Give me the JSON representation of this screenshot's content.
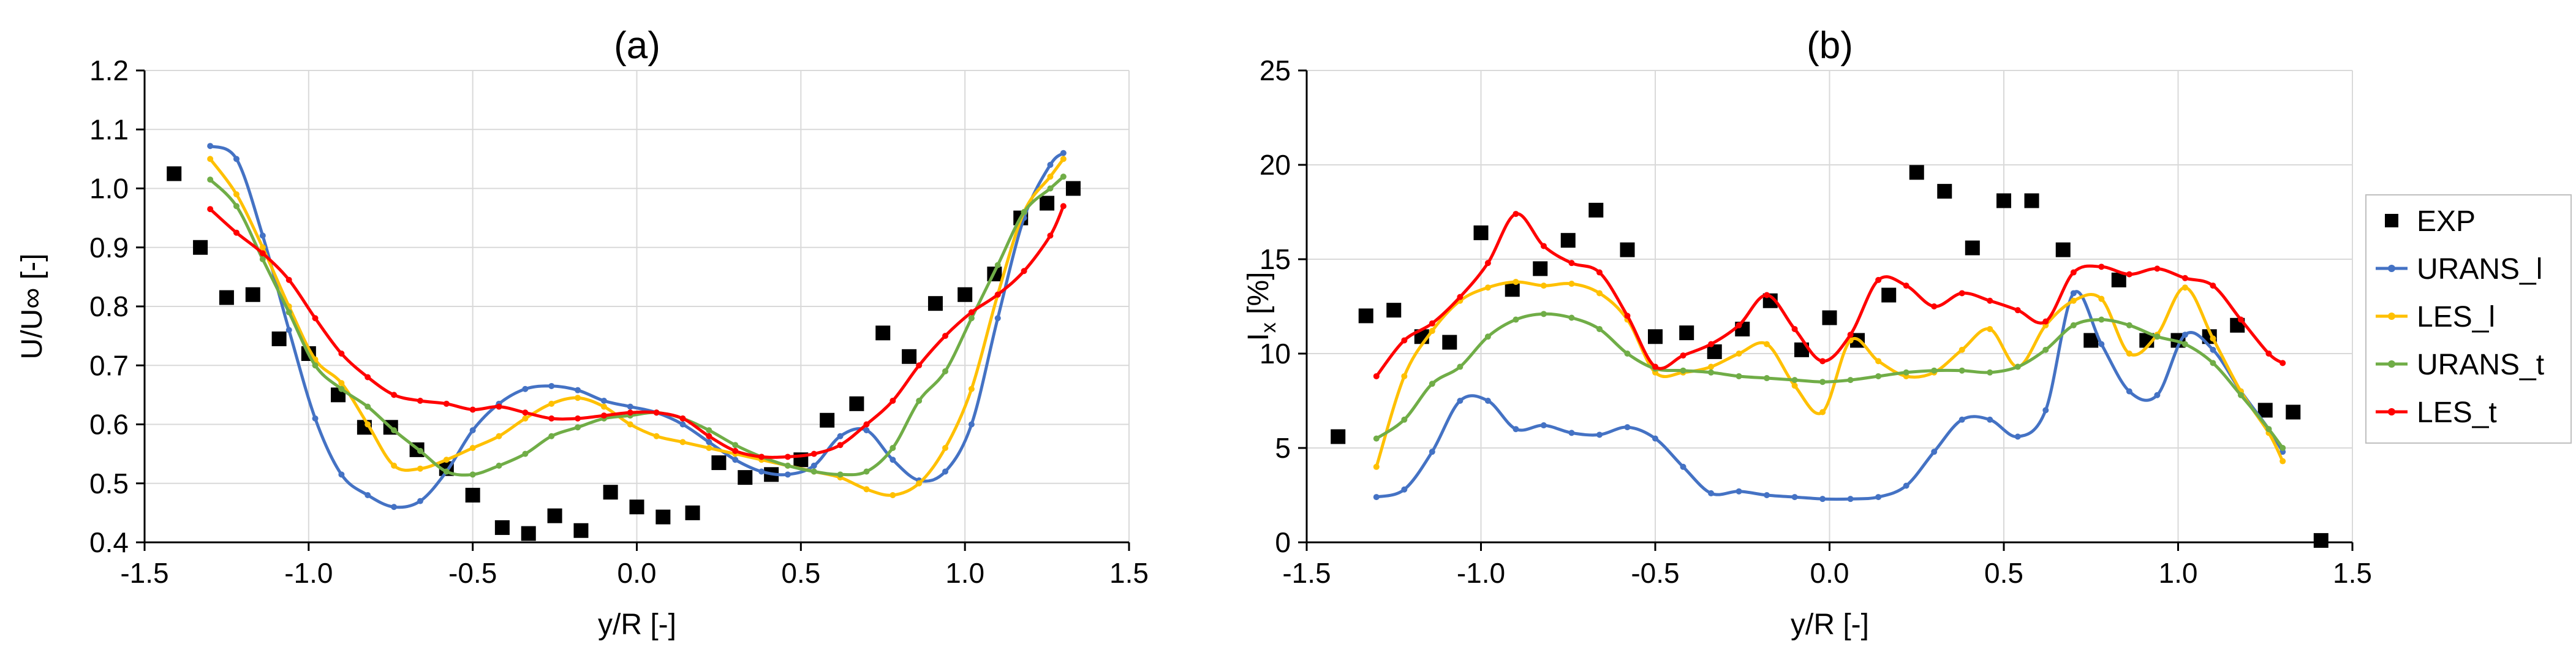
{
  "chart_data": [
    {
      "type": "line",
      "title": "(a)",
      "xlabel": "y/R [-]",
      "ylabel": "U/U∞ [-]",
      "xlim": [
        -1.5,
        1.5
      ],
      "ylim": [
        0.4,
        1.2
      ],
      "xticks": [
        -1.5,
        -1.0,
        -0.5,
        0.0,
        0.5,
        1.0,
        1.5
      ],
      "yticks": [
        0.4,
        0.5,
        0.6,
        0.7,
        0.8,
        0.9,
        1.0,
        1.1,
        1.2
      ],
      "xtick_labels": [
        "-1.5",
        "-1.0",
        "-0.5",
        "0.0",
        "0.5",
        "1.0",
        "1.5"
      ],
      "ytick_labels": [
        "0.4",
        "0.5",
        "0.6",
        "0.7",
        "0.8",
        "0.9",
        "1.0",
        "1.1",
        "1.2"
      ],
      "grid": true,
      "series": [
        {
          "name": "EXP",
          "marker": "square",
          "color": "#000000",
          "x": [
            -1.41,
            -1.33,
            -1.25,
            -1.17,
            -1.09,
            -1.0,
            -0.91,
            -0.83,
            -0.75,
            -0.67,
            -0.58,
            -0.5,
            -0.41,
            -0.33,
            -0.25,
            -0.17,
            -0.08,
            0.0,
            0.08,
            0.17,
            0.25,
            0.33,
            0.41,
            0.5,
            0.58,
            0.67,
            0.75,
            0.83,
            0.91,
            1.0,
            1.09,
            1.17,
            1.25,
            1.33
          ],
          "y": [
            1.025,
            0.9,
            0.815,
            0.82,
            0.745,
            0.72,
            0.65,
            0.595,
            0.595,
            0.557,
            0.525,
            0.48,
            0.425,
            0.415,
            0.445,
            0.42,
            0.485,
            0.46,
            0.443,
            0.45,
            0.535,
            0.51,
            0.515,
            0.54,
            0.607,
            0.635,
            0.755,
            0.715,
            0.805,
            0.82,
            0.855,
            0.95,
            0.975,
            1.0
          ]
        },
        {
          "name": "URANS_l",
          "color": "#4472C4",
          "x": [
            -1.3,
            -1.22,
            -1.14,
            -1.06,
            -0.98,
            -0.9,
            -0.82,
            -0.74,
            -0.66,
            -0.58,
            -0.5,
            -0.42,
            -0.34,
            -0.26,
            -0.18,
            -0.1,
            -0.02,
            0.06,
            0.14,
            0.22,
            0.3,
            0.38,
            0.46,
            0.54,
            0.62,
            0.7,
            0.78,
            0.86,
            0.94,
            1.02,
            1.1,
            1.18,
            1.26,
            1.3
          ],
          "y": [
            1.072,
            1.05,
            0.92,
            0.76,
            0.61,
            0.515,
            0.48,
            0.46,
            0.47,
            0.52,
            0.59,
            0.635,
            0.66,
            0.665,
            0.658,
            0.64,
            0.63,
            0.62,
            0.6,
            0.57,
            0.54,
            0.52,
            0.515,
            0.53,
            0.58,
            0.59,
            0.54,
            0.505,
            0.52,
            0.6,
            0.78,
            0.95,
            1.04,
            1.06
          ]
        },
        {
          "name": "LES_l",
          "color": "#FFC000",
          "x": [
            -1.3,
            -1.22,
            -1.14,
            -1.06,
            -0.98,
            -0.9,
            -0.82,
            -0.74,
            -0.66,
            -0.58,
            -0.5,
            -0.42,
            -0.34,
            -0.26,
            -0.18,
            -0.1,
            -0.02,
            0.06,
            0.14,
            0.22,
            0.3,
            0.38,
            0.46,
            0.54,
            0.62,
            0.7,
            0.78,
            0.86,
            0.94,
            1.02,
            1.1,
            1.18,
            1.26,
            1.3
          ],
          "y": [
            1.05,
            0.99,
            0.9,
            0.8,
            0.71,
            0.67,
            0.6,
            0.53,
            0.525,
            0.54,
            0.56,
            0.58,
            0.61,
            0.635,
            0.645,
            0.63,
            0.6,
            0.58,
            0.57,
            0.56,
            0.55,
            0.54,
            0.53,
            0.52,
            0.51,
            0.49,
            0.48,
            0.5,
            0.56,
            0.66,
            0.82,
            0.96,
            1.02,
            1.05
          ]
        },
        {
          "name": "URANS_t",
          "color": "#70AD47",
          "x": [
            -1.3,
            -1.22,
            -1.14,
            -1.06,
            -0.98,
            -0.9,
            -0.82,
            -0.74,
            -0.66,
            -0.58,
            -0.5,
            -0.42,
            -0.34,
            -0.26,
            -0.18,
            -0.1,
            -0.02,
            0.06,
            0.14,
            0.22,
            0.3,
            0.38,
            0.46,
            0.54,
            0.62,
            0.7,
            0.78,
            0.86,
            0.94,
            1.02,
            1.1,
            1.18,
            1.26,
            1.3
          ],
          "y": [
            1.015,
            0.97,
            0.88,
            0.79,
            0.7,
            0.66,
            0.63,
            0.59,
            0.555,
            0.52,
            0.515,
            0.53,
            0.55,
            0.58,
            0.595,
            0.61,
            0.615,
            0.62,
            0.61,
            0.59,
            0.565,
            0.545,
            0.53,
            0.52,
            0.515,
            0.52,
            0.56,
            0.64,
            0.69,
            0.78,
            0.87,
            0.96,
            1.0,
            1.02
          ]
        },
        {
          "name": "LES_t",
          "color": "#FF0000",
          "x": [
            -1.3,
            -1.22,
            -1.14,
            -1.06,
            -0.98,
            -0.9,
            -0.82,
            -0.74,
            -0.66,
            -0.58,
            -0.5,
            -0.42,
            -0.34,
            -0.26,
            -0.18,
            -0.1,
            -0.02,
            0.06,
            0.14,
            0.22,
            0.3,
            0.38,
            0.46,
            0.54,
            0.62,
            0.7,
            0.78,
            0.86,
            0.94,
            1.02,
            1.1,
            1.18,
            1.26,
            1.3
          ],
          "y": [
            0.965,
            0.925,
            0.89,
            0.845,
            0.78,
            0.72,
            0.68,
            0.65,
            0.64,
            0.635,
            0.625,
            0.63,
            0.62,
            0.61,
            0.61,
            0.615,
            0.62,
            0.62,
            0.61,
            0.58,
            0.555,
            0.545,
            0.545,
            0.55,
            0.565,
            0.6,
            0.64,
            0.7,
            0.75,
            0.79,
            0.82,
            0.86,
            0.92,
            0.97
          ]
        }
      ]
    },
    {
      "type": "line",
      "title": "(b)",
      "xlabel": "y/R [-]",
      "ylabel": "I",
      "ylabel_sub": "x",
      "ylabel_unit": " [%]",
      "xlim": [
        -1.5,
        1.5
      ],
      "ylim": [
        0,
        25
      ],
      "xticks": [
        -1.5,
        -1.0,
        -0.5,
        0.0,
        0.5,
        1.0,
        1.5
      ],
      "yticks": [
        0,
        5,
        10,
        15,
        20,
        25
      ],
      "xtick_labels": [
        "-1.5",
        "-1.0",
        "-0.5",
        "0.0",
        "0.5",
        "1.0",
        "1.5"
      ],
      "ytick_labels": [
        "0",
        "5",
        "10",
        "15",
        "20",
        "25"
      ],
      "grid": true,
      "legend": "right",
      "series": [
        {
          "name": "EXP",
          "marker": "square",
          "color": "#000000",
          "x": [
            -1.41,
            -1.33,
            -1.25,
            -1.17,
            -1.09,
            -1.0,
            -0.91,
            -0.83,
            -0.75,
            -0.67,
            -0.58,
            -0.5,
            -0.41,
            -0.33,
            -0.25,
            -0.17,
            -0.08,
            0.0,
            0.08,
            0.17,
            0.25,
            0.33,
            0.41,
            0.5,
            0.58,
            0.67,
            0.75,
            0.83,
            0.91,
            1.0,
            1.09,
            1.17,
            1.25,
            1.33,
            1.41
          ],
          "y": [
            5.6,
            12.0,
            12.3,
            10.9,
            10.6,
            16.4,
            13.4,
            14.5,
            16.0,
            17.6,
            15.5,
            10.9,
            11.1,
            10.1,
            11.3,
            12.8,
            10.2,
            11.9,
            10.7,
            13.1,
            19.6,
            18.6,
            15.6,
            18.1,
            18.1,
            15.5,
            10.7,
            13.9,
            10.7,
            10.7,
            10.9,
            11.5,
            7.0,
            6.9,
            0.1
          ]
        },
        {
          "name": "URANS_l",
          "color": "#4472C4",
          "x": [
            -1.3,
            -1.22,
            -1.14,
            -1.06,
            -0.98,
            -0.9,
            -0.82,
            -0.74,
            -0.66,
            -0.58,
            -0.5,
            -0.42,
            -0.34,
            -0.26,
            -0.18,
            -0.1,
            -0.02,
            0.06,
            0.14,
            0.22,
            0.3,
            0.38,
            0.46,
            0.54,
            0.62,
            0.7,
            0.78,
            0.86,
            0.94,
            1.02,
            1.1,
            1.18,
            1.26,
            1.3
          ],
          "y": [
            2.4,
            2.8,
            4.8,
            7.5,
            7.5,
            6.0,
            6.2,
            5.8,
            5.7,
            6.1,
            5.5,
            4.0,
            2.6,
            2.7,
            2.5,
            2.4,
            2.3,
            2.3,
            2.4,
            3.0,
            4.8,
            6.5,
            6.5,
            5.6,
            7.0,
            13.2,
            10.5,
            8.0,
            7.8,
            11.0,
            10.2,
            8.0,
            6.0,
            4.8
          ]
        },
        {
          "name": "LES_l",
          "color": "#FFC000",
          "x": [
            -1.3,
            -1.22,
            -1.14,
            -1.06,
            -0.98,
            -0.9,
            -0.82,
            -0.74,
            -0.66,
            -0.58,
            -0.5,
            -0.42,
            -0.34,
            -0.26,
            -0.18,
            -0.1,
            -0.02,
            0.06,
            0.14,
            0.22,
            0.3,
            0.38,
            0.46,
            0.54,
            0.62,
            0.7,
            0.78,
            0.86,
            0.94,
            1.02,
            1.1,
            1.18,
            1.26,
            1.3
          ],
          "y": [
            4.0,
            8.8,
            11.2,
            12.8,
            13.5,
            13.8,
            13.6,
            13.7,
            13.2,
            11.8,
            9.0,
            9.0,
            9.3,
            10.0,
            10.5,
            8.3,
            6.9,
            10.7,
            9.6,
            8.8,
            9.0,
            10.2,
            11.3,
            9.3,
            11.5,
            12.8,
            12.9,
            10.0,
            11.0,
            13.5,
            10.8,
            8.0,
            5.8,
            4.3
          ]
        },
        {
          "name": "URANS_t",
          "color": "#70AD47",
          "x": [
            -1.3,
            -1.22,
            -1.14,
            -1.06,
            -0.98,
            -0.9,
            -0.82,
            -0.74,
            -0.66,
            -0.58,
            -0.5,
            -0.42,
            -0.34,
            -0.26,
            -0.18,
            -0.1,
            -0.02,
            0.06,
            0.14,
            0.22,
            0.3,
            0.38,
            0.46,
            0.54,
            0.62,
            0.7,
            0.78,
            0.86,
            0.94,
            1.02,
            1.1,
            1.18,
            1.26,
            1.3
          ],
          "y": [
            5.5,
            6.5,
            8.4,
            9.3,
            10.9,
            11.8,
            12.1,
            11.9,
            11.3,
            10.0,
            9.2,
            9.1,
            9.0,
            8.8,
            8.7,
            8.6,
            8.5,
            8.6,
            8.8,
            9.0,
            9.1,
            9.1,
            9.0,
            9.3,
            10.2,
            11.5,
            11.8,
            11.5,
            10.9,
            10.5,
            9.5,
            7.8,
            6.0,
            5.0
          ]
        },
        {
          "name": "LES_t",
          "color": "#FF0000",
          "x": [
            -1.3,
            -1.22,
            -1.14,
            -1.06,
            -0.98,
            -0.9,
            -0.82,
            -0.74,
            -0.66,
            -0.58,
            -0.5,
            -0.42,
            -0.34,
            -0.26,
            -0.18,
            -0.1,
            -0.02,
            0.06,
            0.14,
            0.22,
            0.3,
            0.38,
            0.46,
            0.54,
            0.62,
            0.7,
            0.78,
            0.86,
            0.94,
            1.02,
            1.1,
            1.18,
            1.26,
            1.3
          ],
          "y": [
            8.8,
            10.7,
            11.6,
            13.0,
            14.8,
            17.4,
            15.7,
            14.8,
            14.3,
            12.0,
            9.3,
            9.9,
            10.5,
            11.5,
            13.1,
            11.3,
            9.6,
            11.0,
            13.9,
            13.6,
            12.5,
            13.2,
            12.8,
            12.3,
            11.7,
            14.3,
            14.6,
            14.2,
            14.5,
            14.0,
            13.6,
            11.8,
            10.0,
            9.5
          ]
        }
      ]
    }
  ]
}
